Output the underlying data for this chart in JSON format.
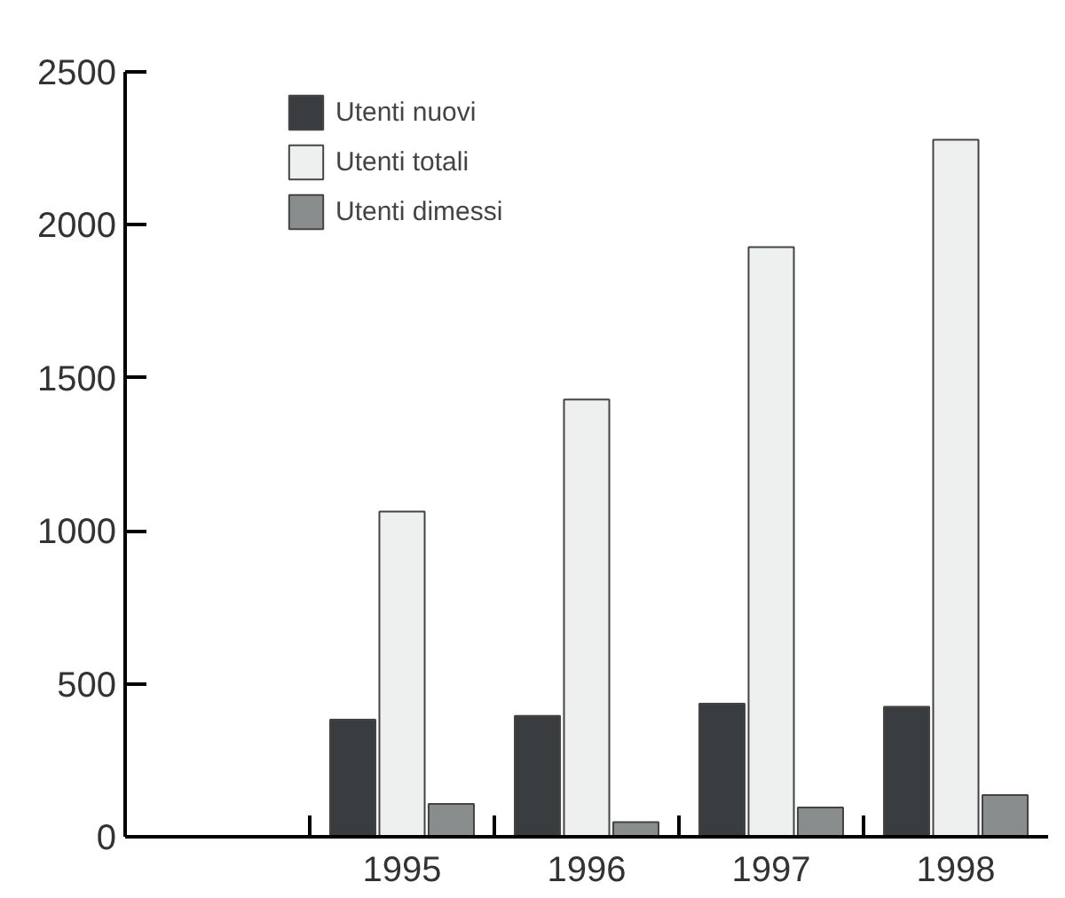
{
  "chart_data": {
    "type": "bar",
    "categories": [
      null,
      "1995",
      "1996",
      "1997",
      "1998"
    ],
    "series": [
      {
        "name": "Utenti nuovi",
        "color": "#3a3d40",
        "values": [
          null,
          383,
          395,
          435,
          425
        ]
      },
      {
        "name": "Utenti totali",
        "color": "#eef0f0",
        "values": [
          null,
          1063,
          1429,
          1927,
          2278
        ]
      },
      {
        "name": "Utenti dimessi",
        "color": "#8a8d8e",
        "values": [
          null,
          107,
          48,
          96,
          136
        ]
      }
    ],
    "ylim": [
      0,
      2500
    ],
    "yticks": [
      0,
      500,
      1000,
      1500,
      2000,
      2500
    ],
    "grid": false,
    "legend": "top left"
  }
}
